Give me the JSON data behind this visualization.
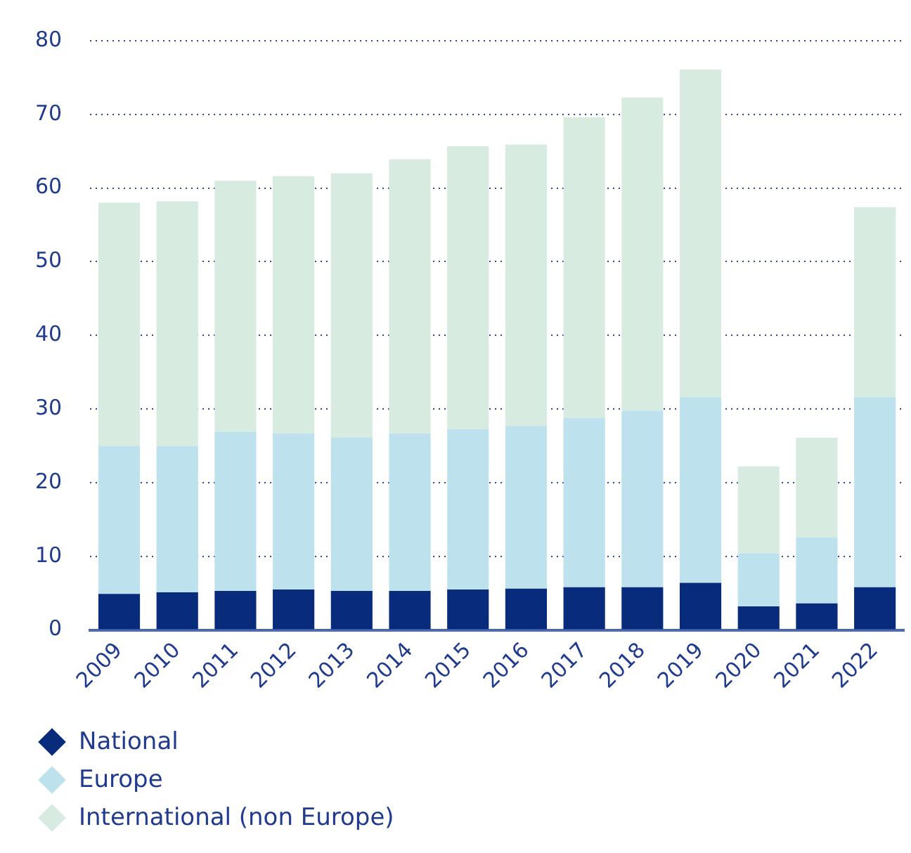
{
  "chart_data": {
    "type": "bar",
    "stacked": true,
    "categories": [
      "2009",
      "2010",
      "2011",
      "2012",
      "2013",
      "2014",
      "2015",
      "2016",
      "2017",
      "2018",
      "2019",
      "2020",
      "2021",
      "2022"
    ],
    "series": [
      {
        "name": "National",
        "color": "#082b7c",
        "values": [
          4.9,
          5.1,
          5.3,
          5.5,
          5.3,
          5.3,
          5.5,
          5.6,
          5.8,
          5.8,
          6.4,
          3.2,
          3.6,
          5.8
        ]
      },
      {
        "name": "Europe",
        "color": "#bee2ed",
        "values": [
          20.1,
          19.9,
          21.6,
          21.2,
          20.8,
          21.4,
          21.8,
          22.1,
          23.0,
          24.0,
          25.2,
          7.2,
          9.0,
          25.8
        ]
      },
      {
        "name": "International (non Europe)",
        "color": "#d8ebe0",
        "values": [
          33.0,
          33.2,
          34.1,
          34.9,
          35.9,
          37.2,
          38.4,
          38.2,
          40.8,
          42.5,
          44.5,
          11.8,
          13.5,
          25.8
        ]
      }
    ],
    "ylim": [
      0,
      80
    ],
    "yticks": [
      0,
      10,
      20,
      30,
      40,
      50,
      60,
      70,
      80
    ],
    "grid": "y",
    "legend": "bottom"
  }
}
